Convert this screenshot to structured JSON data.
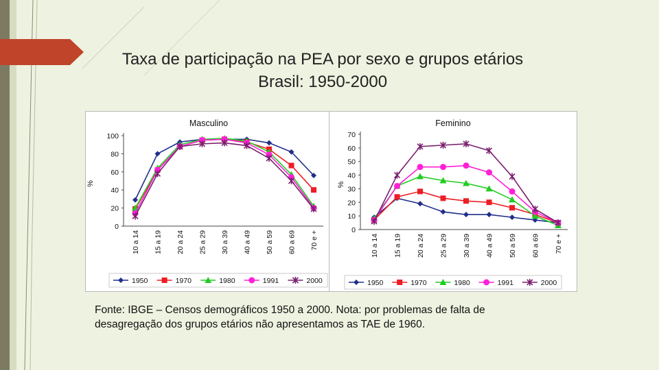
{
  "slide": {
    "title_line1": "Taxa de participação na PEA por sexo e grupos etários",
    "title_line2": "Brasil: 1950-2000",
    "footnote_line1": "Fonte: IBGE – Censos demográficos 1950 a 2000. Nota: por problemas de falta de",
    "footnote_line2": "desagregação dos grupos etários não apresentamos as TAE de 1960.",
    "accent_color": "#c0442a",
    "background_color": "#eef2e0"
  },
  "chart_data": [
    {
      "type": "line",
      "title": "Masculino",
      "xlabel": "",
      "ylabel": "%",
      "ylim": [
        0,
        100
      ],
      "yticks": [
        0,
        20,
        40,
        60,
        80,
        100
      ],
      "categories": [
        "10 a 14",
        "15 a 19",
        "20 a 24",
        "25 a 29",
        "30 a 39",
        "40 a 49",
        "50 a 59",
        "60 a 69",
        "70 e +"
      ],
      "legend_position": "bottom",
      "series": [
        {
          "name": "1950",
          "color": "#1f2f8a",
          "marker": "diamond",
          "values": [
            29,
            80,
            93,
            96,
            96,
            96,
            92,
            82,
            56
          ]
        },
        {
          "name": "1970",
          "color": "#ee1c24",
          "marker": "square",
          "values": [
            19,
            62,
            88,
            95,
            96,
            93,
            85,
            67,
            40
          ]
        },
        {
          "name": "1980",
          "color": "#22cc22",
          "marker": "triangle",
          "values": [
            20,
            64,
            90,
            96,
            97,
            94,
            82,
            57,
            22
          ]
        },
        {
          "name": "1991",
          "color": "#ff1fd8",
          "marker": "circle",
          "values": [
            14,
            62,
            88,
            95,
            96,
            92,
            79,
            54,
            20
          ]
        },
        {
          "name": "2000",
          "color": "#7a1f6e",
          "marker": "star",
          "values": [
            11,
            58,
            88,
            91,
            92,
            89,
            75,
            50,
            19
          ]
        }
      ]
    },
    {
      "type": "line",
      "title": "Feminino",
      "xlabel": "",
      "ylabel": "%",
      "ylim": [
        0,
        70
      ],
      "yticks": [
        0,
        10,
        20,
        30,
        40,
        50,
        60,
        70
      ],
      "categories": [
        "10 a 14",
        "15 a 19",
        "20 a 24",
        "25 a 29",
        "30 a 39",
        "40 a 49",
        "50 a 59",
        "60 a 69",
        "70 e +"
      ],
      "legend_position": "bottom",
      "series": [
        {
          "name": "1950",
          "color": "#1f2f8a",
          "marker": "diamond",
          "values": [
            9,
            23,
            19,
            13,
            11,
            11,
            9,
            7,
            5
          ]
        },
        {
          "name": "1970",
          "color": "#ee1c24",
          "marker": "square",
          "values": [
            7,
            24,
            28,
            23,
            21,
            20,
            16,
            11,
            5
          ]
        },
        {
          "name": "1980",
          "color": "#22cc22",
          "marker": "triangle",
          "values": [
            8,
            32,
            39,
            36,
            34,
            30,
            22,
            10,
            3
          ]
        },
        {
          "name": "1991",
          "color": "#ff1fd8",
          "marker": "circle",
          "values": [
            7,
            32,
            46,
            46,
            47,
            42,
            28,
            13,
            5
          ]
        },
        {
          "name": "2000",
          "color": "#7a1f6e",
          "marker": "star",
          "values": [
            6,
            40,
            61,
            62,
            63,
            58,
            39,
            15,
            5
          ]
        }
      ]
    }
  ]
}
